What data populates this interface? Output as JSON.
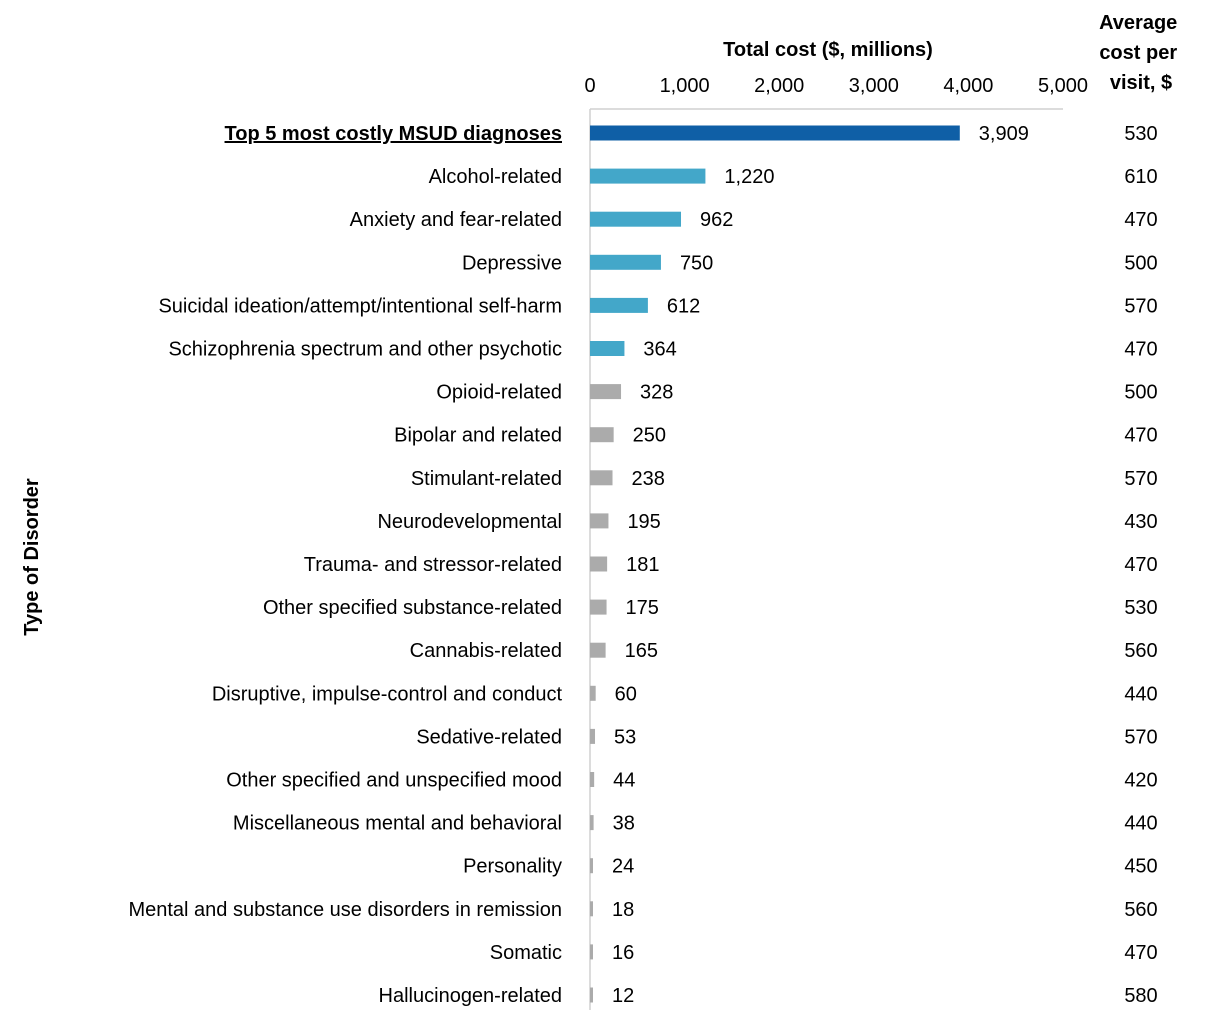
{
  "chart_data": {
    "type": "bar",
    "orientation": "horizontal",
    "xlabel": "Total cost ($, millions)",
    "ylabel": "Type of Disorder",
    "xlim": [
      0,
      5000
    ],
    "x_ticks": [
      "0",
      "1,000",
      "2,000",
      "3,000",
      "4,000",
      "5,000"
    ],
    "x_tick_values": [
      0,
      1000,
      2000,
      3000,
      4000,
      5000
    ],
    "avg_header": [
      "Average",
      "cost per",
      "visit, $"
    ],
    "colors": {
      "total": "#0f5fa6",
      "top5": "#43a7c9",
      "other": "#ababab"
    },
    "categories": [
      "Top 5 most costly MSUD diagnoses",
      "Alcohol-related",
      "Anxiety and fear-related",
      "Depressive",
      "Suicidal ideation/attempt/intentional self-harm",
      "Schizophrenia spectrum and other psychotic",
      "Opioid-related",
      "Bipolar and related",
      "Stimulant-related",
      "Neurodevelopmental",
      "Trauma- and stressor-related",
      "Other specified substance-related",
      "Cannabis-related",
      "Disruptive, impulse-control and conduct",
      "Sedative-related",
      "Other specified and unspecified mood",
      "Miscellaneous mental and behavioral",
      "Personality",
      "Mental and substance use disorders in remission",
      "Somatic",
      "Hallucinogen-related"
    ],
    "values": [
      3909,
      1220,
      962,
      750,
      612,
      364,
      328,
      250,
      238,
      195,
      181,
      175,
      165,
      60,
      53,
      44,
      38,
      24,
      18,
      16,
      12
    ],
    "value_labels": [
      "3,909",
      "1,220",
      "962",
      "750",
      "612",
      "364",
      "328",
      "250",
      "238",
      "195",
      "181",
      "175",
      "165",
      "60",
      "53",
      "44",
      "38",
      "24",
      "18",
      "16",
      "12"
    ],
    "groups": [
      "total",
      "top5",
      "top5",
      "top5",
      "top5",
      "top5",
      "other",
      "other",
      "other",
      "other",
      "other",
      "other",
      "other",
      "other",
      "other",
      "other",
      "other",
      "other",
      "other",
      "other",
      "other"
    ],
    "avg_cost_per_visit": [
      "530",
      "610",
      "470",
      "500",
      "570",
      "470",
      "500",
      "470",
      "570",
      "430",
      "470",
      "530",
      "560",
      "440",
      "570",
      "420",
      "440",
      "450",
      "560",
      "470",
      "580"
    ]
  }
}
